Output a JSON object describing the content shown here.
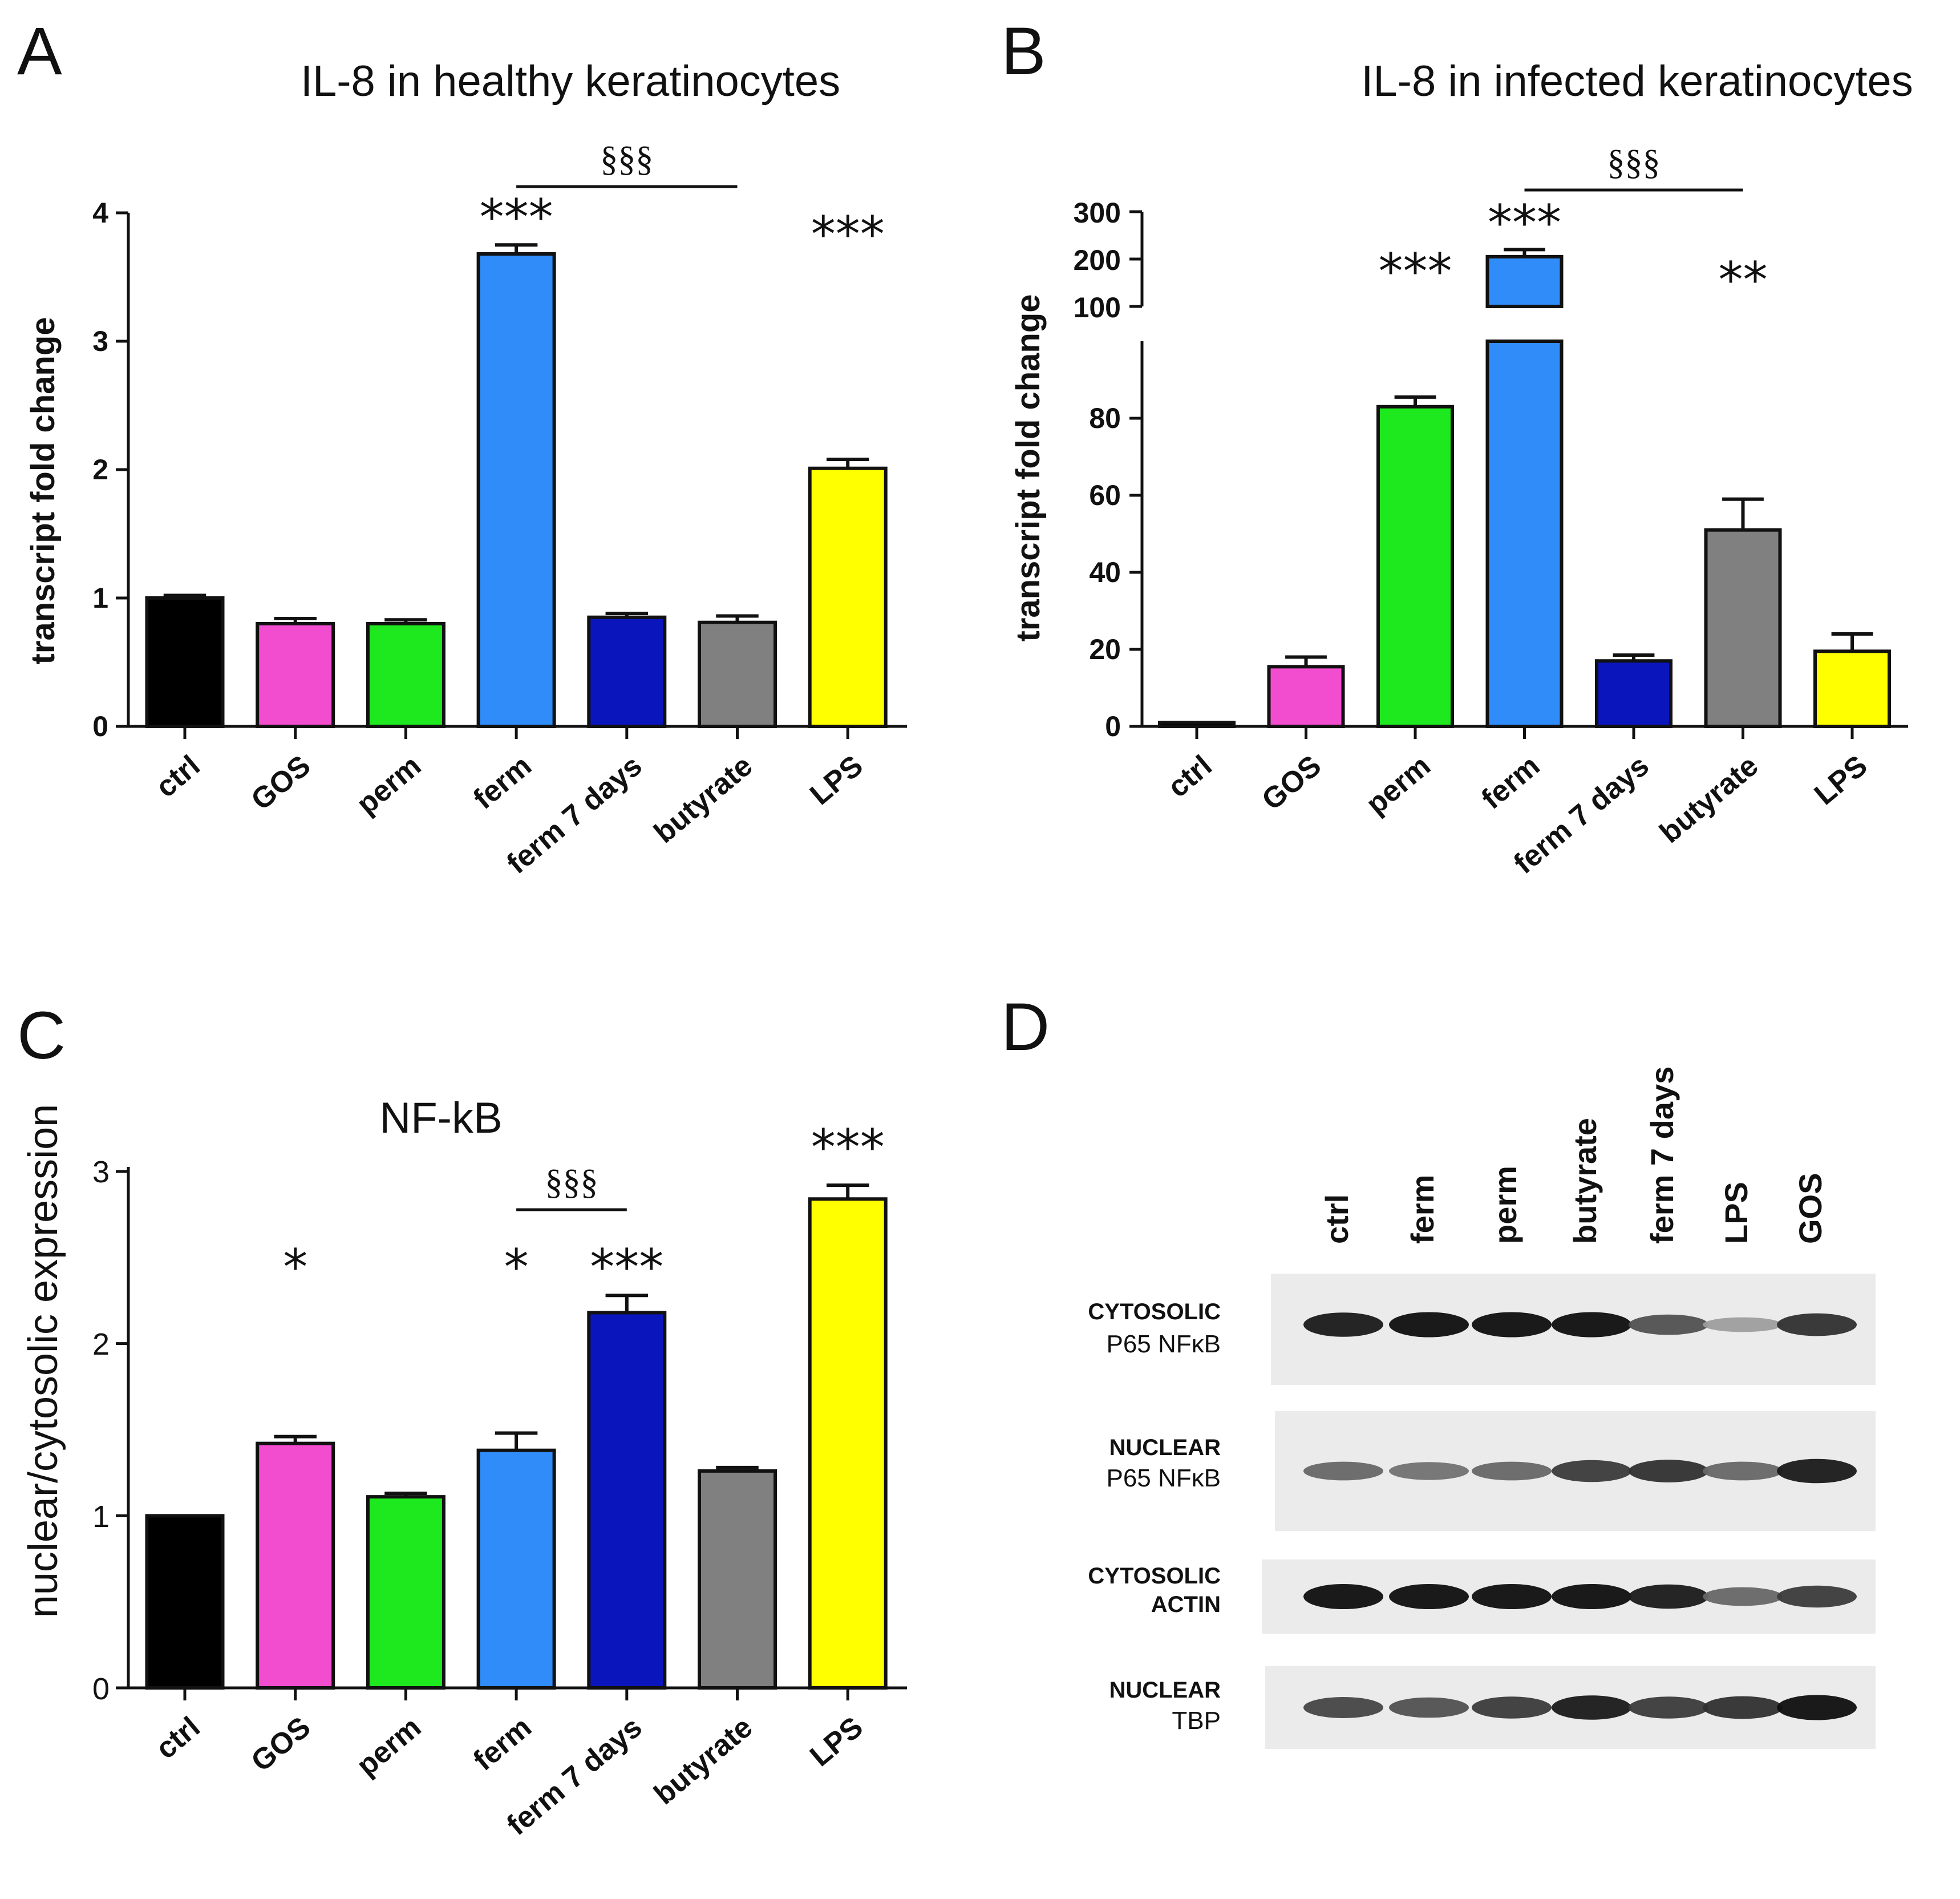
{
  "chart_data": [
    {
      "panel": "A",
      "type": "bar",
      "title": "IL-8 in healthy keratinocytes",
      "xlabel": "",
      "ylabel": "transcript fold change",
      "ylim": [
        0,
        4
      ],
      "yticks": [
        "0",
        "1",
        "2",
        "3",
        "4"
      ],
      "categories": [
        "ctrl",
        "GOS",
        "perm",
        "ferm",
        "ferm 7 days",
        "butyrate",
        "LPS"
      ],
      "values": [
        1.0,
        0.8,
        0.8,
        3.68,
        0.85,
        0.81,
        2.01
      ],
      "errors": [
        0.02,
        0.04,
        0.03,
        0.07,
        0.03,
        0.05,
        0.07
      ],
      "colors": [
        "#000000",
        "#f24ccf",
        "#1ee81e",
        "#2f8cf8",
        "#0a16bb",
        "#808080",
        "#ffff00"
      ],
      "significance": [
        "",
        "",
        "",
        "***",
        "",
        "",
        "***"
      ],
      "bracket": {
        "from": 3,
        "to": 5,
        "label": "§§§"
      }
    },
    {
      "panel": "B",
      "type": "bar",
      "title": "IL-8 in infected keratinocytes",
      "xlabel": "",
      "ylabel": "transcript fold change",
      "ylim": [
        0,
        300
      ],
      "axis_break": {
        "lower": [
          0,
          100
        ],
        "upper": [
          100,
          300
        ]
      },
      "yticks_lower": [
        "0",
        "20",
        "40",
        "60",
        "80"
      ],
      "yticks_upper": [
        "100",
        "200",
        "300"
      ],
      "categories": [
        "ctrl",
        "GOS",
        "perm",
        "ferm",
        "ferm 7 days",
        "butyrate",
        "LPS"
      ],
      "values": [
        1,
        15.5,
        83,
        205,
        17,
        51,
        19.5
      ],
      "errors": [
        0.3,
        2.5,
        2.5,
        15,
        1.5,
        8,
        4.5
      ],
      "colors": [
        "#000000",
        "#f24ccf",
        "#1ee81e",
        "#2f8cf8",
        "#0a16bb",
        "#808080",
        "#ffff00"
      ],
      "significance": [
        "",
        "",
        "***",
        "***",
        "",
        "**",
        ""
      ],
      "bracket": {
        "from": 3,
        "to": 5,
        "label": "§§§"
      }
    },
    {
      "panel": "C",
      "type": "bar",
      "title": "NF-kB",
      "xlabel": "",
      "ylabel": "nuclear/cytosolic expression",
      "ylim": [
        0,
        3
      ],
      "yticks": [
        "0",
        "1",
        "2",
        "3"
      ],
      "categories": [
        "ctrl",
        "GOS",
        "perm",
        "ferm",
        "ferm 7 days",
        "butyrate",
        "LPS"
      ],
      "values": [
        1.0,
        1.42,
        1.11,
        1.38,
        2.18,
        1.26,
        2.84
      ],
      "errors": [
        0.0,
        0.04,
        0.02,
        0.1,
        0.1,
        0.02,
        0.08
      ],
      "colors": [
        "#000000",
        "#f24ccf",
        "#1ee81e",
        "#2f8cf8",
        "#0a16bb",
        "#808080",
        "#ffff00"
      ],
      "significance": [
        "",
        "*",
        "",
        "*",
        "***",
        "",
        "***"
      ],
      "bracket": {
        "from": 3,
        "to": 4,
        "label": "§§§"
      }
    }
  ],
  "panels": {
    "A": {
      "letter": "A"
    },
    "B": {
      "letter": "B"
    },
    "C": {
      "letter": "C"
    },
    "D": {
      "letter": "D"
    }
  },
  "blot": {
    "lanes": [
      "ctrl",
      "ferm",
      "perm",
      "butyrate",
      "ferm 7 days",
      "LPS",
      "GOS"
    ],
    "rows": [
      {
        "line1": "CYTOSOLIC",
        "line2": "P65 NFκB",
        "intensity": [
          0.95,
          1.0,
          1.0,
          1.0,
          0.7,
          0.35,
          0.85
        ]
      },
      {
        "line1": "NUCLEAR",
        "line2": "P65 NFκB",
        "intensity": [
          0.6,
          0.55,
          0.6,
          0.8,
          0.85,
          0.6,
          0.95
        ]
      },
      {
        "line1": "CYTOSOLIC",
        "line2": "ACTIN",
        "intensity": [
          1.0,
          1.0,
          1.0,
          1.0,
          0.95,
          0.6,
          0.8
        ]
      },
      {
        "line1": "NUCLEAR",
        "line2": "TBP",
        "intensity": [
          0.75,
          0.7,
          0.8,
          0.95,
          0.8,
          0.85,
          1.0
        ]
      }
    ]
  }
}
